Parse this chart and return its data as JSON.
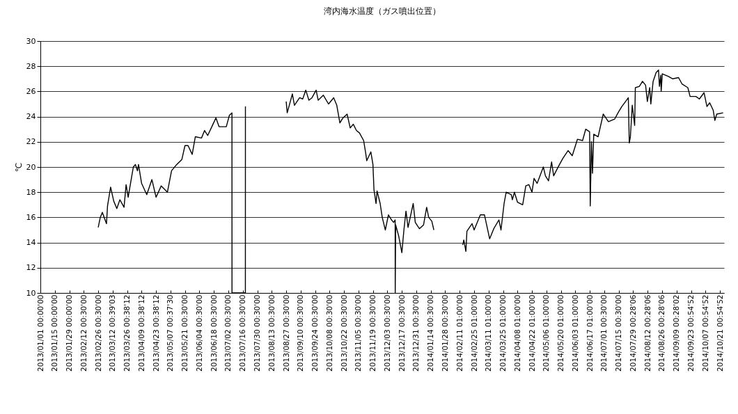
{
  "chart_data": {
    "type": "line",
    "title": "湾内海水温度（ガス噴出位置）",
    "ylabel": "℃",
    "xlim": [
      "2013-01-01",
      "2014-10-25"
    ],
    "ylim": [
      10,
      30
    ],
    "yticks": [
      10,
      12,
      14,
      16,
      18,
      20,
      22,
      24,
      26,
      28,
      30
    ],
    "grid": "y",
    "xticks": [
      {
        "value": "2013-01-01",
        "label": "2013/01/01 00:00'00"
      },
      {
        "value": "2013-01-15",
        "label": "2013/01/15 00:00'00"
      },
      {
        "value": "2013-01-29",
        "label": "2013/01/29 00:00'00"
      },
      {
        "value": "2013-02-12",
        "label": "2013/02/12 00:30'00"
      },
      {
        "value": "2013-02-26",
        "label": "2013/02/26 00:30'00"
      },
      {
        "value": "2013-03-12",
        "label": "2013/03/12 00:39'03"
      },
      {
        "value": "2013-03-26",
        "label": "2013/03/26 00:38'12"
      },
      {
        "value": "2013-04-09",
        "label": "2013/04/09 00:38'12"
      },
      {
        "value": "2013-04-23",
        "label": "2013/04/23 00:38'12"
      },
      {
        "value": "2013-05-07",
        "label": "2013/05/07 00:37'30"
      },
      {
        "value": "2013-05-21",
        "label": "2013/05/21 00:30'00"
      },
      {
        "value": "2013-06-04",
        "label": "2013/06/04 00:30'00"
      },
      {
        "value": "2013-06-18",
        "label": "2013/06/18 00:30'00"
      },
      {
        "value": "2013-07-02",
        "label": "2013/07/02 00:30'00"
      },
      {
        "value": "2013-07-16",
        "label": "2013/07/16 00:30'00"
      },
      {
        "value": "2013-07-30",
        "label": "2013/07/30 00:30'00"
      },
      {
        "value": "2013-08-13",
        "label": "2013/08/13 00:30'00"
      },
      {
        "value": "2013-08-27",
        "label": "2013/08/27 00:30'00"
      },
      {
        "value": "2013-09-10",
        "label": "2013/09/10 00:30'00"
      },
      {
        "value": "2013-09-24",
        "label": "2013/09/24 00:30'00"
      },
      {
        "value": "2013-10-08",
        "label": "2013/10/08 00:30'00"
      },
      {
        "value": "2013-10-22",
        "label": "2013/10/22 00:30'00"
      },
      {
        "value": "2013-11-05",
        "label": "2013/11/05 00:30'00"
      },
      {
        "value": "2013-11-19",
        "label": "2013/11/19 00:30'00"
      },
      {
        "value": "2013-12-03",
        "label": "2013/12/03 00:30'00"
      },
      {
        "value": "2013-12-17",
        "label": "2013/12/17 00:30'00"
      },
      {
        "value": "2013-12-31",
        "label": "2013/12/31 00:30'00"
      },
      {
        "value": "2014-01-14",
        "label": "2014/01/14 00:30'00"
      },
      {
        "value": "2014-01-28",
        "label": "2014/01/28 00:30'00"
      },
      {
        "value": "2014-02-11",
        "label": "2014/02/11 01:00'00"
      },
      {
        "value": "2014-02-25",
        "label": "2014/02/25 01:00'00"
      },
      {
        "value": "2014-03-11",
        "label": "2014/03/11 01:00'00"
      },
      {
        "value": "2014-03-25",
        "label": "2014/03/25 01:00'00"
      },
      {
        "value": "2014-04-08",
        "label": "2014/04/08 01:00'00"
      },
      {
        "value": "2014-04-22",
        "label": "2014/04/22 01:00'00"
      },
      {
        "value": "2014-05-06",
        "label": "2014/05/06 01:00'00"
      },
      {
        "value": "2014-05-20",
        "label": "2014/05/20 01:00'00"
      },
      {
        "value": "2014-06-03",
        "label": "2014/06/03 01:00'00"
      },
      {
        "value": "2014-06-17",
        "label": "2014/06/17 01:00'00"
      },
      {
        "value": "2014-07-01",
        "label": "2014/07/01 00:30'00"
      },
      {
        "value": "2014-07-15",
        "label": "2014/07/15 00:30'00"
      },
      {
        "value": "2014-07-29",
        "label": "2014/07/29 00:28'06"
      },
      {
        "value": "2014-08-12",
        "label": "2014/08/12 00:28'06"
      },
      {
        "value": "2014-08-26",
        "label": "2014/08/26 00:28'06"
      },
      {
        "value": "2014-09-09",
        "label": "2014/09/09 00:28'02"
      },
      {
        "value": "2014-09-23",
        "label": "2014/09/23 00:54'52"
      },
      {
        "value": "2014-10-07",
        "label": "2014/10/07 00:54'52"
      },
      {
        "value": "2014-10-21",
        "label": "2014/10/21 00:54'52"
      }
    ],
    "x": [
      "2013-02-26",
      "2013-02-28",
      "2013-03-02",
      "2013-03-06",
      "2013-03-07",
      "2013-03-10",
      "2013-03-13",
      "2013-03-16",
      "2013-03-19",
      "2013-03-23",
      "2013-03-25",
      "2013-03-27",
      "2013-04-01",
      "2013-04-03",
      "2013-04-05",
      "2013-04-06",
      "2013-04-09",
      "2013-04-14",
      "2013-04-19",
      "2013-04-23",
      "2013-04-28",
      "2013-05-04",
      "2013-05-08",
      "2013-05-13",
      "2013-05-18",
      "2013-05-21",
      "2013-05-24",
      "2013-05-28",
      "2013-05-31",
      "2013-06-06",
      "2013-06-09",
      "2013-06-12",
      "2013-06-16",
      "2013-06-20",
      "2013-06-23",
      "2013-06-30",
      "2013-07-03",
      "2013-07-05T12:00",
      "2013-07-05T13:00",
      "2013-07-18T12:00",
      "2013-07-18T13:00",
      "2013-07-19",
      "2013-08-27",
      "2013-08-28",
      "2013-08-30",
      "2013-09-02",
      "2013-09-04",
      "2013-09-09",
      "2013-09-12",
      "2013-09-15",
      "2013-09-18",
      "2013-09-21",
      "2013-09-25",
      "2013-09-27",
      "2013-10-02",
      "2013-10-07",
      "2013-10-12",
      "2013-10-15",
      "2013-10-18",
      "2013-10-21",
      "2013-10-25",
      "2013-10-28",
      "2013-10-31",
      "2013-11-03",
      "2013-11-06",
      "2013-11-10",
      "2013-11-12",
      "2013-11-13",
      "2013-11-17",
      "2013-11-19",
      "2013-11-20",
      "2013-11-22",
      "2013-11-23",
      "2013-11-26",
      "2013-11-28",
      "2013-12-01",
      "2013-12-04",
      "2013-12-07",
      "2013-12-09",
      "2013-12-10T12:00",
      "2013-12-10T14:00",
      "2013-12-11",
      "2013-12-14",
      "2013-12-17",
      "2013-12-19",
      "2013-12-21",
      "2013-12-23",
      "2013-12-28",
      "2013-12-30",
      "2014-01-03",
      "2014-01-07",
      "2014-01-10",
      "2014-01-12",
      "2014-01-15",
      "2014-01-17",
      "2014-01-18",
      "2014-02-14",
      "2014-02-15",
      "2014-02-17",
      "2014-02-18",
      "2014-02-23",
      "2014-02-25",
      "2014-03-03",
      "2014-03-07",
      "2014-03-12",
      "2014-03-16",
      "2014-03-21",
      "2014-03-23",
      "2014-03-26",
      "2014-03-28",
      "2014-04-02",
      "2014-04-03",
      "2014-04-05",
      "2014-04-08",
      "2014-04-13",
      "2014-04-16",
      "2014-04-19",
      "2014-04-22",
      "2014-04-24",
      "2014-04-27",
      "2014-05-03",
      "2014-05-05",
      "2014-05-08",
      "2014-05-11",
      "2014-05-13",
      "2014-05-18",
      "2014-05-22",
      "2014-05-27",
      "2014-05-31",
      "2014-06-05",
      "2014-06-10",
      "2014-06-13",
      "2014-06-16T19:00",
      "2014-06-17T10:00",
      "2014-06-18T14:00",
      "2014-06-19T14:00",
      "2014-06-20T19:00",
      "2014-06-25",
      "2014-06-30",
      "2014-07-05",
      "2014-07-11",
      "2014-07-15",
      "2014-07-18",
      "2014-07-22T12:00",
      "2014-07-24T07:00",
      "2014-07-25T05:00",
      "2014-07-26T07:00",
      "2014-07-28T02:00",
      "2014-07-30T10:00",
      "2014-07-31T02:00",
      "2014-08-04",
      "2014-08-07",
      "2014-08-10",
      "2014-08-11T17:00",
      "2014-08-14",
      "2014-08-15T02:00",
      "2014-08-17T07:00",
      "2014-08-20T05:00",
      "2014-08-22T12:00",
      "2014-08-23T10:00",
      "2014-08-24T17:00",
      "2014-08-25T02:00",
      "2014-08-26T05:00",
      "2014-08-31T19:00",
      "2014-09-05T07:00",
      "2014-09-10T22:00",
      "2014-09-14T05:00",
      "2014-09-19T22:00",
      "2014-09-22T02:00",
      "2014-09-27T17:00",
      "2014-10-01T02:00",
      "2014-10-05T14:00",
      "2014-10-08T10:00",
      "2014-10-11T02:00",
      "2014-10-14T12:00",
      "2014-10-16T02:00",
      "2014-10-17T22:00",
      "2014-10-24T02:00"
    ],
    "series": [
      {
        "color": "#000000",
        "values": [
          15.2,
          16.0,
          16.4,
          15.5,
          16.9,
          18.4,
          17.3,
          16.7,
          17.4,
          16.8,
          18.6,
          17.6,
          20.0,
          20.2,
          19.7,
          20.2,
          18.7,
          17.8,
          19.0,
          17.6,
          18.5,
          18.0,
          19.7,
          20.2,
          20.6,
          21.7,
          21.7,
          21.0,
          22.4,
          22.3,
          22.9,
          22.5,
          23.2,
          23.9,
          23.2,
          23.2,
          24.1,
          24.3,
          10,
          10,
          24.8,
          null,
          25.2,
          24.3,
          24.9,
          25.8,
          24.9,
          25.5,
          25.4,
          26.1,
          25.3,
          25.5,
          26.1,
          25.3,
          25.7,
          25.0,
          25.5,
          24.9,
          23.5,
          23.9,
          24.2,
          23.1,
          23.4,
          22.9,
          22.7,
          22.1,
          21.1,
          20.5,
          21.2,
          20.2,
          18.2,
          17.1,
          18.1,
          17.1,
          16.0,
          15.0,
          16.2,
          15.8,
          15.6,
          15.8,
          10,
          15.4,
          14.5,
          13.2,
          15.0,
          16.5,
          15.2,
          17.1,
          15.6,
          15.1,
          15.4,
          16.8,
          16.0,
          15.7,
          15.0,
          null,
          13.8,
          14.2,
          13.3,
          14.9,
          15.5,
          15.0,
          16.2,
          16.2,
          14.3,
          15.1,
          15.8,
          15.0,
          17.1,
          18.0,
          17.8,
          17.4,
          18.0,
          17.2,
          17.0,
          18.5,
          18.6,
          18.0,
          19.1,
          18.7,
          20.0,
          19.3,
          18.9,
          20.4,
          19.3,
          20.1,
          20.7,
          21.3,
          20.9,
          22.2,
          22.1,
          23.0,
          22.8,
          16.9,
          22.0,
          19.5,
          22.6,
          22.4,
          24.2,
          23.6,
          23.8,
          24.4,
          24.8,
          25.3,
          25.5,
          21.9,
          22.4,
          24.9,
          23.3,
          26.3,
          26.4,
          26.8,
          26.5,
          25.2,
          26.3,
          25.0,
          26.8,
          27.5,
          27.7,
          26.4,
          27.3,
          26.0,
          27.4,
          27.2,
          27.0,
          27.1,
          26.6,
          26.3,
          25.6,
          25.6,
          25.4,
          25.9,
          24.8,
          25.1,
          24.5,
          23.7,
          24.2,
          24.3
        ]
      }
    ]
  }
}
